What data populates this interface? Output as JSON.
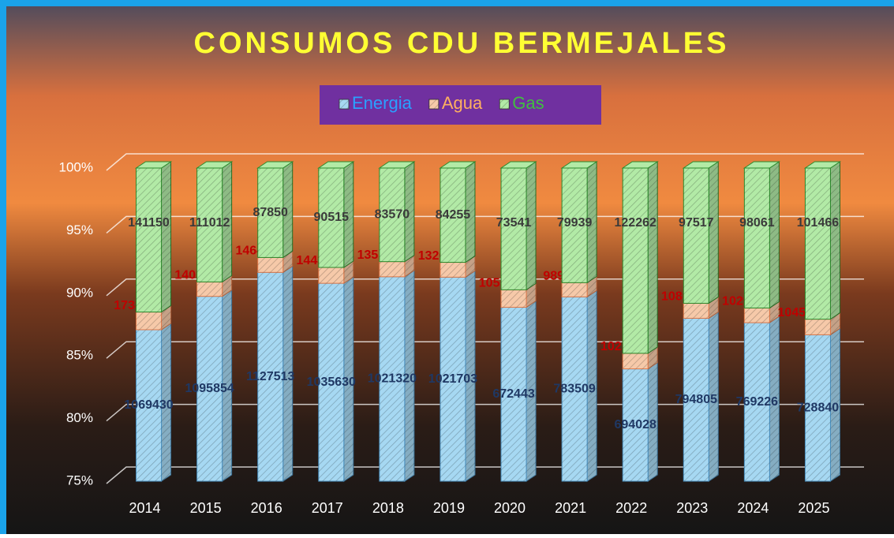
{
  "chart_data": {
    "type": "bar",
    "stacked": "percent",
    "title": "CONSUMOS CDU BERMEJALES",
    "categories": [
      "2014",
      "2015",
      "2016",
      "2017",
      "2018",
      "2019",
      "2020",
      "2021",
      "2022",
      "2023",
      "2024",
      "2025"
    ],
    "series": [
      {
        "name": "Energia",
        "color": "#a6d8f2",
        "label_color": "#1f3864",
        "values": [
          1069430,
          1095854,
          1127513,
          1035630,
          1021320,
          1021703,
          672443,
          783509,
          694028,
          794805,
          769226,
          728840
        ]
      },
      {
        "name": "Agua",
        "color": "#f6c9a9",
        "label_color": "#c00000",
        "values": [
          17382,
          14058,
          14642,
          14434,
          13516,
          13261,
          10555,
          9890,
          10257,
          10802,
          10292,
          10450.3
        ]
      },
      {
        "name": "Gas",
        "color": "#b2eaa6",
        "label_color": "#3a3a3a",
        "values": [
          141150,
          111012,
          87850,
          90515,
          83570,
          84255,
          73541,
          79939,
          122262,
          97517,
          98061,
          101466
        ]
      }
    ],
    "ylim": [
      75,
      100
    ],
    "yticks": [
      {
        "value": 75,
        "label": "75%"
      },
      {
        "value": 80,
        "label": "80%"
      },
      {
        "value": 85,
        "label": "85%"
      },
      {
        "value": 90,
        "label": "90%"
      },
      {
        "value": 95,
        "label": "95%"
      },
      {
        "value": 100,
        "label": "100%"
      }
    ],
    "grid": true,
    "legend": "top"
  }
}
